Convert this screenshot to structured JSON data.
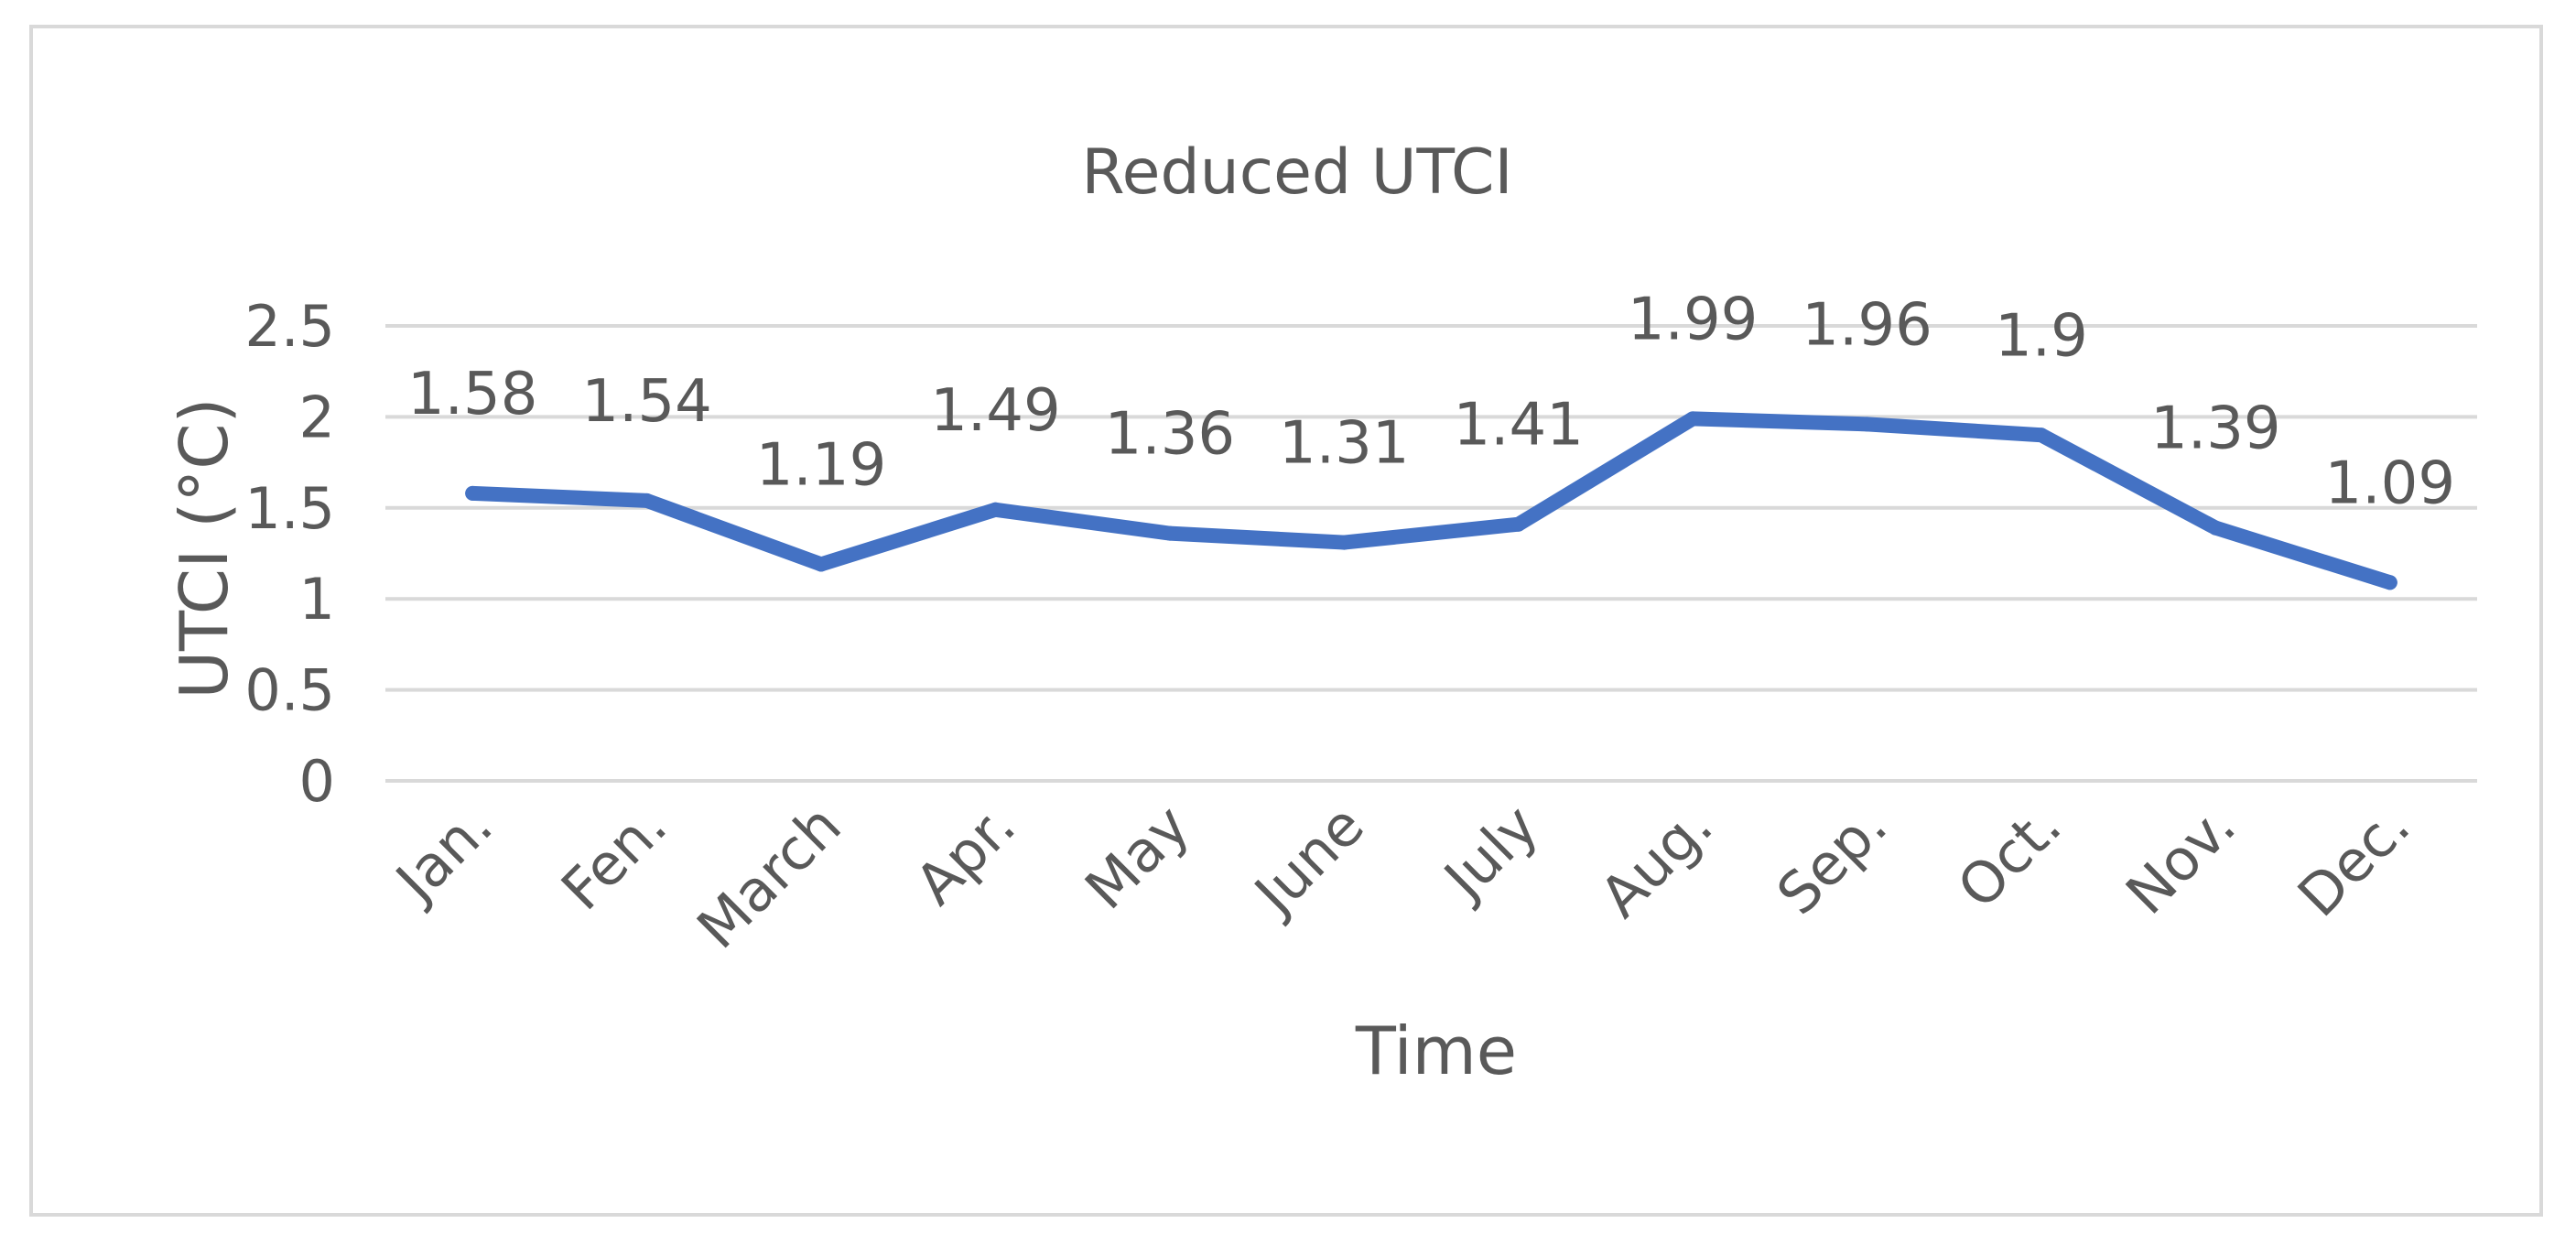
{
  "chart_data": {
    "type": "line",
    "title": "Reduced UTCI",
    "xlabel": "Time",
    "ylabel": "UTCI (°C)",
    "ylim": [
      0,
      2.5
    ],
    "yticks": [
      "0",
      "0.5",
      "1",
      "1.5",
      "2",
      "2.5"
    ],
    "ytick_values": [
      0,
      0.5,
      1,
      1.5,
      2,
      2.5
    ],
    "grid": true,
    "legend": "none",
    "categories": [
      "Jan.",
      "Fen.",
      "March",
      "Apr.",
      "May",
      "June",
      "July",
      "Aug.",
      "Sep.",
      "Oct.",
      "Nov.",
      "Dec."
    ],
    "series": [
      {
        "values": [
          1.58,
          1.54,
          1.19,
          1.49,
          1.36,
          1.31,
          1.41,
          1.99,
          1.96,
          1.9,
          1.39,
          1.09
        ],
        "labels": [
          "1.58",
          "1.54",
          "1.19",
          "1.49",
          "1.36",
          "1.31",
          "1.41",
          "1.99",
          "1.96",
          "1.9",
          "1.39",
          "1.09"
        ],
        "color": "#4472c4"
      }
    ],
    "gridline_color": "#d9d9d9",
    "text_color": "#595959"
  }
}
